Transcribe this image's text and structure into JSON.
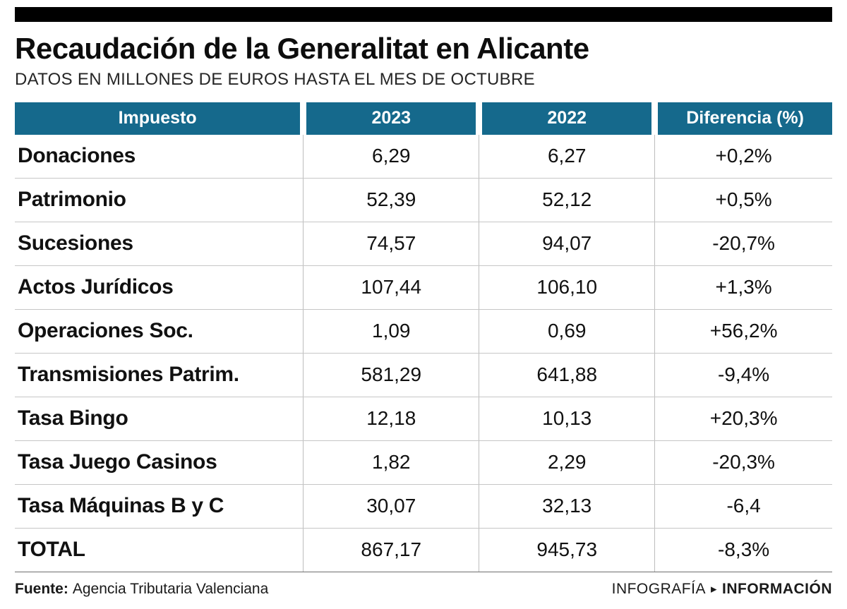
{
  "header": {
    "title": "Recaudación de la Generalitat en Alicante",
    "subtitle": "DATOS EN MILLONES DE EUROS HASTA EL MES DE OCTUBRE"
  },
  "chart_data": {
    "type": "table",
    "title": "Recaudación de la Generalitat en Alicante",
    "subtitle": "DATOS EN MILLONES DE EUROS HASTA EL MES DE OCTUBRE",
    "columns": [
      "Impuesto",
      "2023",
      "2022",
      "Diferencia (%)"
    ],
    "rows": [
      [
        "Donaciones",
        "6,29",
        "6,27",
        "+0,2%"
      ],
      [
        "Patrimonio",
        "52,39",
        "52,12",
        "+0,5%"
      ],
      [
        "Sucesiones",
        "74,57",
        "94,07",
        "-20,7%"
      ],
      [
        "Actos Jurídicos",
        "107,44",
        "106,10",
        "+1,3%"
      ],
      [
        "Operaciones Soc.",
        "1,09",
        "0,69",
        "+56,2%"
      ],
      [
        "Transmisiones Patrim.",
        "581,29",
        "641,88",
        "-9,4%"
      ],
      [
        "Tasa Bingo",
        "12,18",
        "10,13",
        "+20,3%"
      ],
      [
        "Tasa Juego Casinos",
        "1,82",
        "2,29",
        "-20,3%"
      ],
      [
        "Tasa Máquinas B y C",
        "30,07",
        "32,13",
        "-6,4"
      ],
      [
        "TOTAL",
        "867,17",
        "945,73",
        "-8,3%"
      ]
    ]
  },
  "footer": {
    "source_label": "Fuente:",
    "source_name": "Agencia Tributaria Valenciana",
    "credit_left": "INFOGRAFÍA",
    "credit_arrow": "▸",
    "credit_right": "INFORMACIÓN"
  },
  "colors": {
    "header_bg": "#15698c",
    "top_bar": "#000000",
    "grid_line": "#c6c6c6"
  }
}
